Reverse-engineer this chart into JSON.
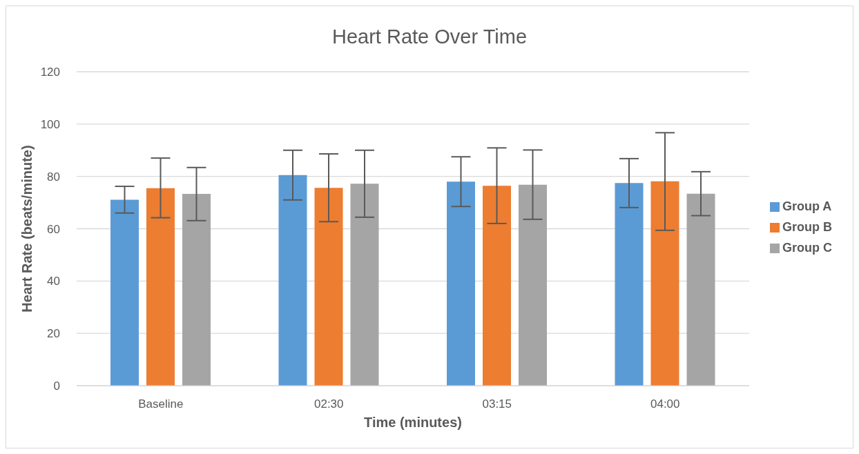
{
  "chart_data": {
    "type": "bar",
    "title": "Heart Rate Over Time",
    "xlabel": "Time (minutes)",
    "ylabel": "Heart Rate (beats/minute)",
    "categories": [
      "Baseline",
      "02:30",
      "03:15",
      "04:00"
    ],
    "series": [
      {
        "name": "Group A",
        "color": "#5b9bd5",
        "values": [
          71.1,
          80.5,
          78.0,
          77.5
        ],
        "errors": [
          [
            66.0,
            76.2
          ],
          [
            71.0,
            90.0
          ],
          [
            68.5,
            87.5
          ],
          [
            68.1,
            86.8
          ]
        ]
      },
      {
        "name": "Group B",
        "color": "#ed7d31",
        "values": [
          75.5,
          75.6,
          76.4,
          78.1
        ],
        "errors": [
          [
            64.2,
            87.0
          ],
          [
            62.7,
            88.6
          ],
          [
            62.0,
            90.9
          ],
          [
            59.4,
            96.7
          ]
        ]
      },
      {
        "name": "Group C",
        "color": "#a5a5a5",
        "values": [
          73.3,
          77.2,
          76.8,
          73.4
        ],
        "errors": [
          [
            63.1,
            83.4
          ],
          [
            64.4,
            90.0
          ],
          [
            63.6,
            90.1
          ],
          [
            65.0,
            81.8
          ]
        ]
      }
    ],
    "ylim": [
      0,
      120
    ],
    "yticks": [
      0,
      20,
      40,
      60,
      80,
      100,
      120
    ],
    "grid": "y",
    "legend": "right"
  }
}
